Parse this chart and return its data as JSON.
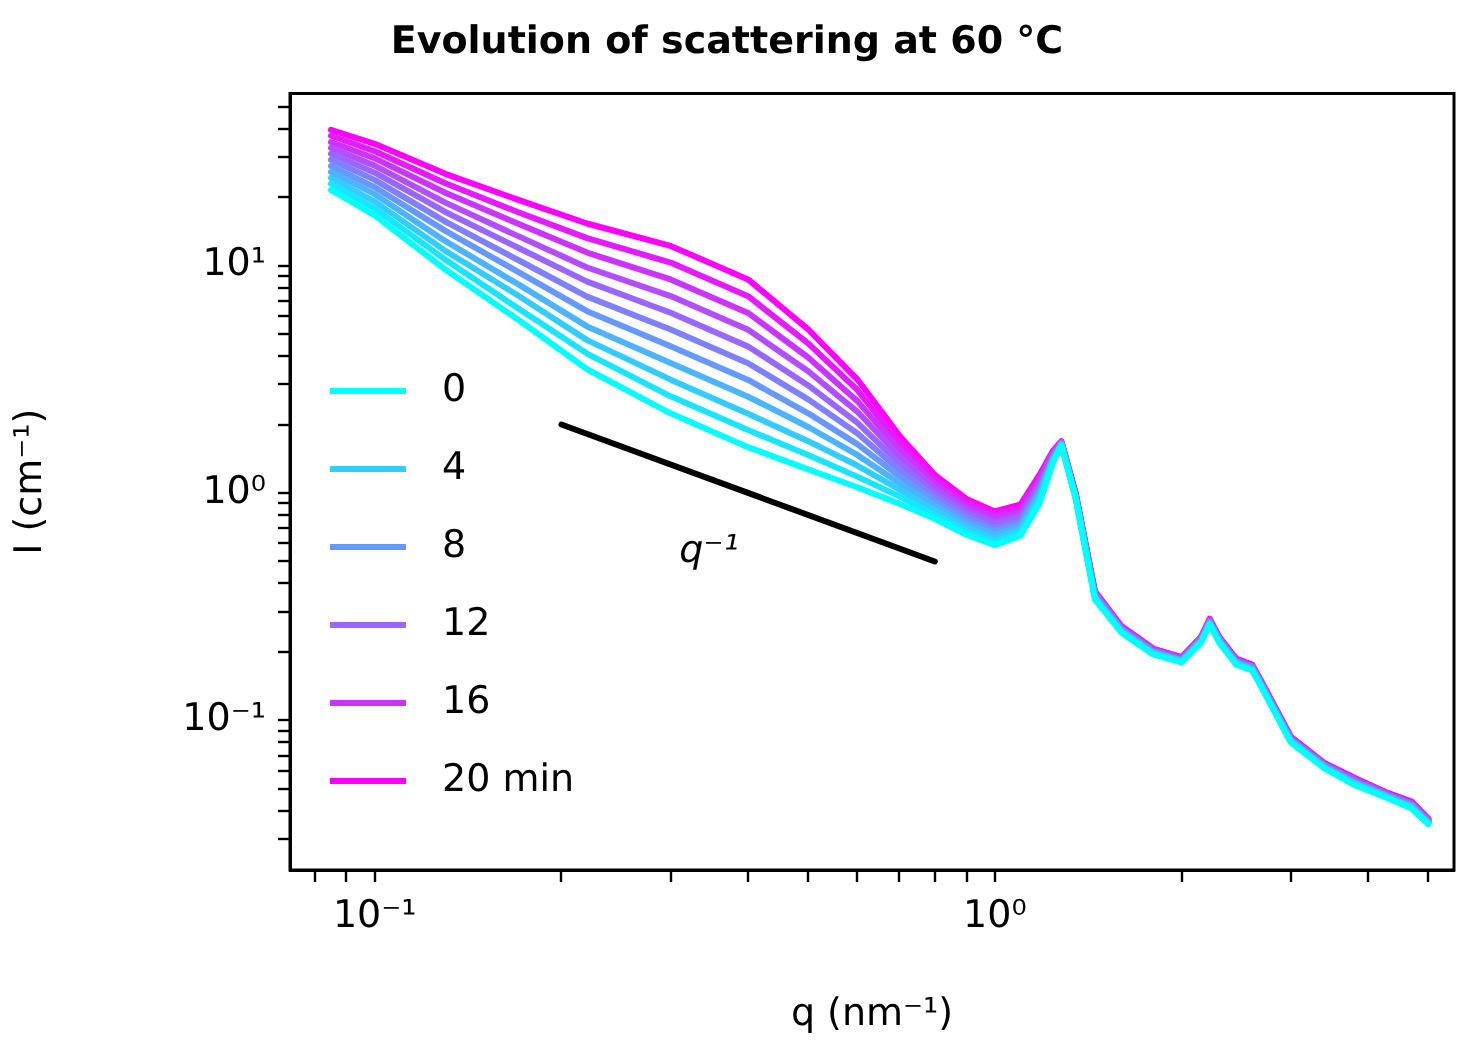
{
  "chart_data": {
    "type": "line",
    "title": "Evolution of scattering at 60 °C",
    "xlabel": "q (nm⁻¹)",
    "ylabel": "I (cm⁻¹)",
    "log": "xy",
    "grid": false,
    "legend": "lower left",
    "marker": "none",
    "line_style": "solid",
    "xlim": [
      0.073,
      5.5
    ],
    "ylim": [
      0.022,
      57
    ],
    "xticks": [
      {
        "value": 0.08,
        "label": null
      },
      {
        "value": 0.09,
        "label": null
      },
      {
        "value": 0.1,
        "label": "10⁻¹"
      },
      {
        "value": 0.2,
        "label": null
      },
      {
        "value": 0.3,
        "label": null
      },
      {
        "value": 0.4,
        "label": null
      },
      {
        "value": 0.5,
        "label": null
      },
      {
        "value": 0.6,
        "label": null
      },
      {
        "value": 0.7,
        "label": null
      },
      {
        "value": 0.8,
        "label": null
      },
      {
        "value": 0.9,
        "label": null
      },
      {
        "value": 1,
        "label": "10⁰"
      },
      {
        "value": 2,
        "label": null
      },
      {
        "value": 3,
        "label": null
      },
      {
        "value": 4,
        "label": null
      },
      {
        "value": 5,
        "label": null
      }
    ],
    "yticks": [
      {
        "value": 0.03,
        "label": null
      },
      {
        "value": 0.04,
        "label": null
      },
      {
        "value": 0.05,
        "label": null
      },
      {
        "value": 0.06,
        "label": null
      },
      {
        "value": 0.07,
        "label": null
      },
      {
        "value": 0.08,
        "label": null
      },
      {
        "value": 0.09,
        "label": null
      },
      {
        "value": 0.1,
        "label": "10⁻¹"
      },
      {
        "value": 0.2,
        "label": null
      },
      {
        "value": 0.3,
        "label": null
      },
      {
        "value": 0.4,
        "label": null
      },
      {
        "value": 0.5,
        "label": null
      },
      {
        "value": 0.6,
        "label": null
      },
      {
        "value": 0.7,
        "label": null
      },
      {
        "value": 0.8,
        "label": null
      },
      {
        "value": 0.9,
        "label": null
      },
      {
        "value": 1,
        "label": "10⁰"
      },
      {
        "value": 2,
        "label": null
      },
      {
        "value": 3,
        "label": null
      },
      {
        "value": 4,
        "label": null
      },
      {
        "value": 5,
        "label": null
      },
      {
        "value": 6,
        "label": null
      },
      {
        "value": 7,
        "label": null
      },
      {
        "value": 8,
        "label": null
      },
      {
        "value": 9,
        "label": null
      },
      {
        "value": 10,
        "label": "10¹"
      },
      {
        "value": 20,
        "label": null
      },
      {
        "value": 30,
        "label": null
      },
      {
        "value": 40,
        "label": null
      },
      {
        "value": 50,
        "label": null
      }
    ],
    "x": [
      0.085,
      0.1,
      0.13,
      0.17,
      0.22,
      0.3,
      0.4,
      0.5,
      0.6,
      0.7,
      0.8,
      0.9,
      1.0,
      1.1,
      1.18,
      1.24,
      1.28,
      1.35,
      1.45,
      1.6,
      1.8,
      2.0,
      2.15,
      2.22,
      2.3,
      2.45,
      2.6,
      2.75,
      3.0,
      3.4,
      3.8,
      4.3,
      4.7,
      5.0
    ],
    "annotations": [
      "q⁻¹"
    ],
    "series": [
      {
        "name": "0",
        "color": "#00ffff",
        "values": [
          21.5,
          16.6,
          9.6,
          5.8,
          3.5,
          2.24,
          1.59,
          1.27,
          1.06,
          0.9,
          0.77,
          0.655,
          0.59,
          0.65,
          0.9,
          1.35,
          1.62,
          0.94,
          0.34,
          0.243,
          0.195,
          0.18,
          0.22,
          0.264,
          0.22,
          0.176,
          0.166,
          0.125,
          0.08,
          0.0615,
          0.052,
          0.0455,
          0.041,
          0.035
        ]
      },
      {
        "color": "#1ae5ff",
        "values": [
          22.9,
          17.8,
          10.6,
          6.5,
          4.1,
          2.66,
          1.89,
          1.47,
          1.18,
          0.97,
          0.8,
          0.679,
          0.61,
          0.67,
          0.93,
          1.37,
          1.63,
          0.95,
          0.343,
          0.245,
          0.196,
          0.181,
          0.221,
          0.266,
          0.221,
          0.177,
          0.167,
          0.126,
          0.0805,
          0.0619,
          0.0524,
          0.0458,
          0.0413,
          0.0352
        ]
      },
      {
        "name": "4",
        "color": "#33ccff",
        "values": [
          24.3,
          19.1,
          11.6,
          7.4,
          4.7,
          3.15,
          2.23,
          1.69,
          1.32,
          1.04,
          0.84,
          0.705,
          0.63,
          0.69,
          0.96,
          1.38,
          1.63,
          0.95,
          0.346,
          0.246,
          0.197,
          0.182,
          0.223,
          0.267,
          0.223,
          0.178,
          0.168,
          0.127,
          0.081,
          0.0622,
          0.0528,
          0.046,
          0.0416,
          0.0354
        ]
      },
      {
        "color": "#4cb3ff",
        "values": [
          25.8,
          20.6,
          12.8,
          8.3,
          5.4,
          3.73,
          2.65,
          1.95,
          1.47,
          1.11,
          0.88,
          0.73,
          0.66,
          0.71,
          0.99,
          1.4,
          1.64,
          0.96,
          0.349,
          0.248,
          0.199,
          0.183,
          0.224,
          0.269,
          0.224,
          0.179,
          0.169,
          0.127,
          0.0815,
          0.0626,
          0.0532,
          0.0463,
          0.0419,
          0.0356
        ]
      },
      {
        "name": "8",
        "color": "#6699ff",
        "values": [
          27.4,
          22.1,
          14.2,
          9.4,
          6.3,
          4.42,
          3.14,
          2.24,
          1.64,
          1.19,
          0.92,
          0.757,
          0.68,
          0.73,
          1.02,
          1.42,
          1.65,
          0.96,
          0.352,
          0.25,
          0.2,
          0.184,
          0.225,
          0.27,
          0.225,
          0.18,
          0.17,
          0.128,
          0.082,
          0.0629,
          0.0536,
          0.0465,
          0.0422,
          0.0358
        ]
      },
      {
        "color": "#7f80ff",
        "values": [
          29.2,
          23.8,
          15.6,
          10.6,
          7.3,
          5.23,
          3.72,
          2.58,
          1.83,
          1.27,
          0.96,
          0.785,
          0.7,
          0.75,
          1.04,
          1.44,
          1.65,
          0.97,
          0.355,
          0.252,
          0.201,
          0.185,
          0.227,
          0.272,
          0.227,
          0.181,
          0.171,
          0.129,
          0.0825,
          0.0633,
          0.054,
          0.0468,
          0.0425,
          0.036
        ]
      },
      {
        "name": "12",
        "color": "#9966ff",
        "values": [
          31.0,
          25.6,
          17.2,
          12.0,
          8.5,
          6.2,
          4.41,
          2.97,
          2.04,
          1.36,
          1.0,
          0.815,
          0.73,
          0.78,
          1.07,
          1.46,
          1.66,
          0.98,
          0.358,
          0.253,
          0.202,
          0.186,
          0.228,
          0.274,
          0.228,
          0.183,
          0.172,
          0.13,
          0.083,
          0.0636,
          0.0544,
          0.047,
          0.0428,
          0.0362
        ]
      },
      {
        "color": "#b34dff",
        "values": [
          32.9,
          27.5,
          18.9,
          13.5,
          9.8,
          7.34,
          5.22,
          3.43,
          2.28,
          1.46,
          1.05,
          0.845,
          0.75,
          0.8,
          1.11,
          1.48,
          1.67,
          0.98,
          0.361,
          0.255,
          0.203,
          0.187,
          0.229,
          0.275,
          0.229,
          0.184,
          0.173,
          0.131,
          0.0835,
          0.064,
          0.0548,
          0.0473,
          0.0431,
          0.0364
        ]
      },
      {
        "name": "16",
        "color": "#cc33ff",
        "values": [
          34.9,
          29.6,
          20.9,
          15.3,
          11.4,
          8.69,
          6.19,
          3.94,
          2.54,
          1.56,
          1.1,
          0.875,
          0.78,
          0.83,
          1.14,
          1.49,
          1.67,
          0.99,
          0.364,
          0.257,
          0.205,
          0.188,
          0.23,
          0.277,
          0.23,
          0.185,
          0.174,
          0.131,
          0.084,
          0.0643,
          0.0552,
          0.0475,
          0.0434,
          0.0366
        ]
      },
      {
        "color": "#e51aff",
        "values": [
          37.2,
          31.8,
          23.0,
          17.2,
          13.2,
          10.3,
          7.33,
          4.55,
          2.84,
          1.67,
          1.15,
          0.908,
          0.81,
          0.86,
          1.17,
          1.51,
          1.68,
          0.99,
          0.367,
          0.258,
          0.206,
          0.189,
          0.232,
          0.278,
          0.232,
          0.186,
          0.175,
          0.132,
          0.0845,
          0.0647,
          0.0556,
          0.0478,
          0.0437,
          0.0368
        ]
      },
      {
        "name": "20 min",
        "color": "#ff00ff",
        "values": [
          39.5,
          34.3,
          25.3,
          19.5,
          15.3,
          12.2,
          8.69,
          5.24,
          3.16,
          1.8,
          1.2,
          0.942,
          0.83,
          0.89,
          1.2,
          1.53,
          1.69,
          1.0,
          0.37,
          0.26,
          0.207,
          0.19,
          0.233,
          0.28,
          0.233,
          0.187,
          0.176,
          0.133,
          0.085,
          0.065,
          0.056,
          0.048,
          0.044,
          0.037
        ]
      },
      {
        "type": "line",
        "color": "#000000",
        "x": [
          0.2,
          0.8
        ],
        "values": [
          2.0,
          0.5
        ]
      }
    ]
  }
}
